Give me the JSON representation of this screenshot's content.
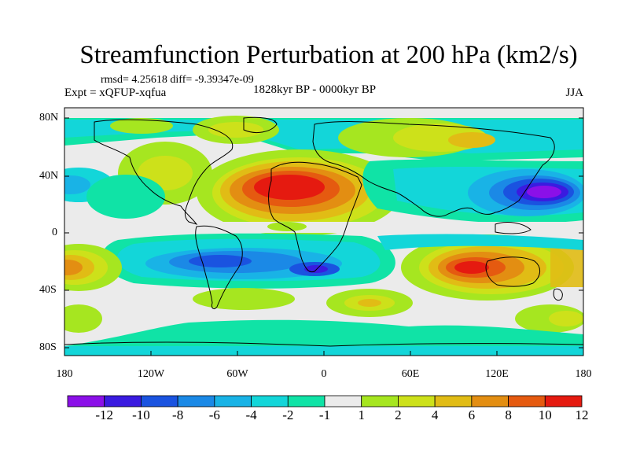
{
  "title": "Streamfunction Perturbation at 200 hPa (km2/s)",
  "stats": "rmsd= 4.25618 diff= -9.39347e-09",
  "experiment": "Expt = xQFUP-xqfua",
  "period": "1828kyr BP - 0000kyr BP",
  "season": "JJA",
  "lat_labels": [
    "80N",
    "40N",
    "0",
    "40S",
    "80S"
  ],
  "lon_labels": [
    "180",
    "120W",
    "60W",
    "0",
    "60E",
    "120E",
    "180"
  ],
  "colorbar": {
    "labels": [
      "-12",
      "-10",
      "-8",
      "-6",
      "-4",
      "-2",
      "-1",
      "1",
      "2",
      "4",
      "6",
      "8",
      "10",
      "12"
    ],
    "colors": [
      "#8b10e8",
      "#3a1be0",
      "#1a53e0",
      "#1b89e6",
      "#19b3e6",
      "#13d6d9",
      "#10e3a6",
      "#ebebeb",
      "#a6e620",
      "#cde11a",
      "#e1bc15",
      "#e38e12",
      "#e55a10",
      "#e51a10"
    ]
  },
  "background_color": "#ebebeb"
}
